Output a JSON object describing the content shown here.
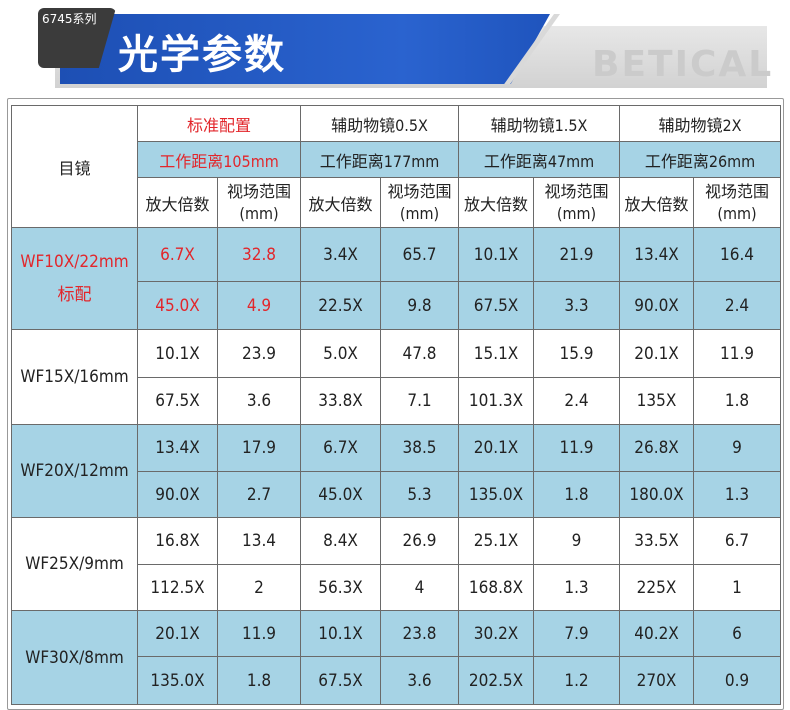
{
  "header": {
    "series": "6745系列",
    "title": "光学参数",
    "brand": "BETICAL"
  },
  "table": {
    "eyepiece_header": "目镜",
    "configs": [
      {
        "name": "标准配置",
        "working_distance": "工作距离105mm"
      },
      {
        "name": "辅助物镜0.5X",
        "working_distance": "工作距离177mm"
      },
      {
        "name": "辅助物镜1.5X",
        "working_distance": "工作距离47mm"
      },
      {
        "name": "辅助物镜2X",
        "working_distance": "工作距离26mm"
      }
    ],
    "mag_label": "放大倍数",
    "fov_label": "视场范围",
    "fov_unit": "(mm)",
    "rows": [
      {
        "eyepiece": "WF10X/22mm",
        "note": "标配",
        "r1": [
          "6.7X",
          "32.8",
          "3.4X",
          "65.7",
          "10.1X",
          "21.9",
          "13.4X",
          "16.4"
        ],
        "r2": [
          "45.0X",
          "4.9",
          "22.5X",
          "9.8",
          "67.5X",
          "3.3",
          "90.0X",
          "2.4"
        ]
      },
      {
        "eyepiece": "WF15X/16mm",
        "note": "",
        "r1": [
          "10.1X",
          "23.9",
          "5.0X",
          "47.8",
          "15.1X",
          "15.9",
          "20.1X",
          "11.9"
        ],
        "r2": [
          "67.5X",
          "3.6",
          "33.8X",
          "7.1",
          "101.3X",
          "2.4",
          "135X",
          "1.8"
        ]
      },
      {
        "eyepiece": "WF20X/12mm",
        "note": "",
        "r1": [
          "13.4X",
          "17.9",
          "6.7X",
          "38.5",
          "20.1X",
          "11.9",
          "26.8X",
          "9"
        ],
        "r2": [
          "90.0X",
          "2.7",
          "45.0X",
          "5.3",
          "135.0X",
          "1.8",
          "180.0X",
          "1.3"
        ]
      },
      {
        "eyepiece": "WF25X/9mm",
        "note": "",
        "r1": [
          "16.8X",
          "13.4",
          "8.4X",
          "26.9",
          "25.1X",
          "9",
          "33.5X",
          "6.7"
        ],
        "r2": [
          "112.5X",
          "2",
          "56.3X",
          "4",
          "168.8X",
          "1.3",
          "225X",
          "1"
        ]
      },
      {
        "eyepiece": "WF30X/8mm",
        "note": "",
        "r1": [
          "20.1X",
          "11.9",
          "10.1X",
          "23.8",
          "30.2X",
          "7.9",
          "40.2X",
          "6"
        ],
        "r2": [
          "135.0X",
          "1.8",
          "67.5X",
          "3.6",
          "202.5X",
          "1.2",
          "270X",
          "0.9"
        ]
      }
    ]
  },
  "colors": {
    "banner_blue": "#2a63cf",
    "row_blue": "#a6d3e5",
    "highlight_red": "#e2262b"
  }
}
